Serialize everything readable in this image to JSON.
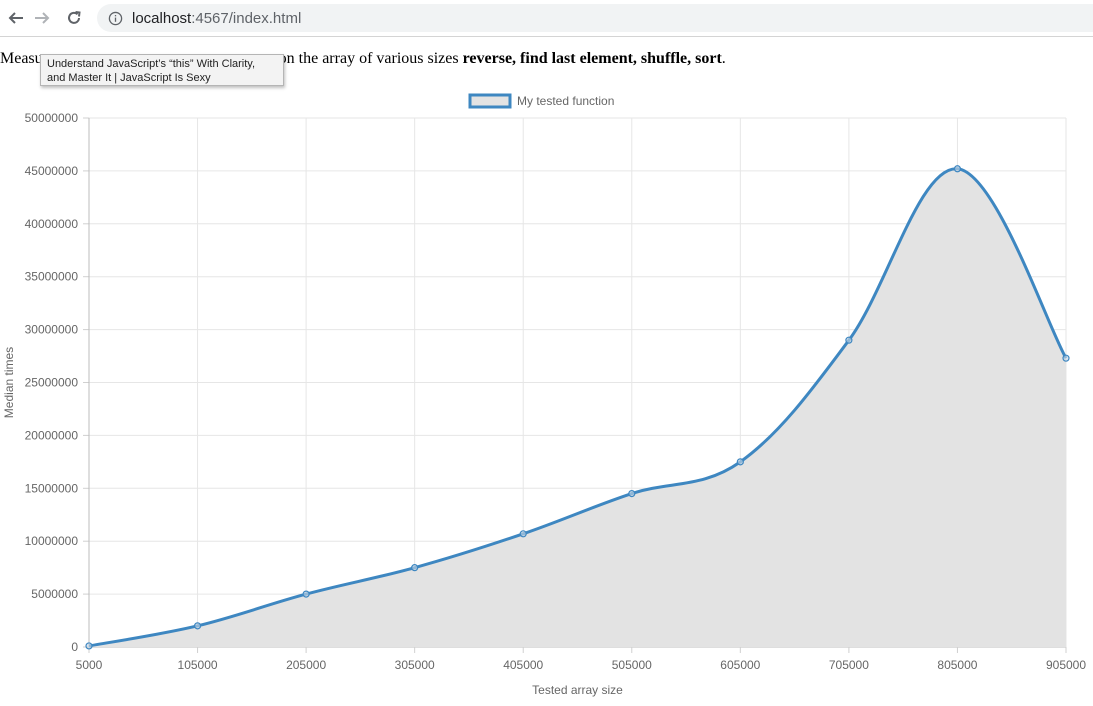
{
  "browser": {
    "back_icon": "arrow-left-icon",
    "forward_icon": "arrow-right-icon",
    "reload_icon": "reload-icon",
    "info_icon": "info-icon",
    "url_host": "localhost",
    "url_rest": ":4567/index.html"
  },
  "page": {
    "intro_visible": "Measu",
    "intro_text": "on the array of various sizes ",
    "operations": "reverse, find last element, shuffle, sort",
    "period": "."
  },
  "tooltip": {
    "line1": "Understand JavaScript’s “this” With Clarity,",
    "line2": "and Master It | JavaScript Is Sexy"
  },
  "chart_data": {
    "type": "line",
    "title": "",
    "xlabel": "Tested array size",
    "ylabel": "Median times",
    "x": [
      5000,
      105000,
      205000,
      305000,
      405000,
      505000,
      605000,
      705000,
      805000,
      905000
    ],
    "series": [
      {
        "name": "My tested function",
        "values": [
          100000,
          2000000,
          5000000,
          7500000,
          10700000,
          14500000,
          17500000,
          29000000,
          45200000,
          27300000
        ],
        "color": "#3e87c1",
        "fill": "#e3e3e3"
      }
    ],
    "ylim": [
      0,
      50000000
    ],
    "yticks": [
      0,
      5000000,
      10000000,
      15000000,
      20000000,
      25000000,
      30000000,
      35000000,
      40000000,
      45000000,
      50000000
    ],
    "grid": true,
    "legend": "top-center",
    "filled": true,
    "smooth": true
  }
}
